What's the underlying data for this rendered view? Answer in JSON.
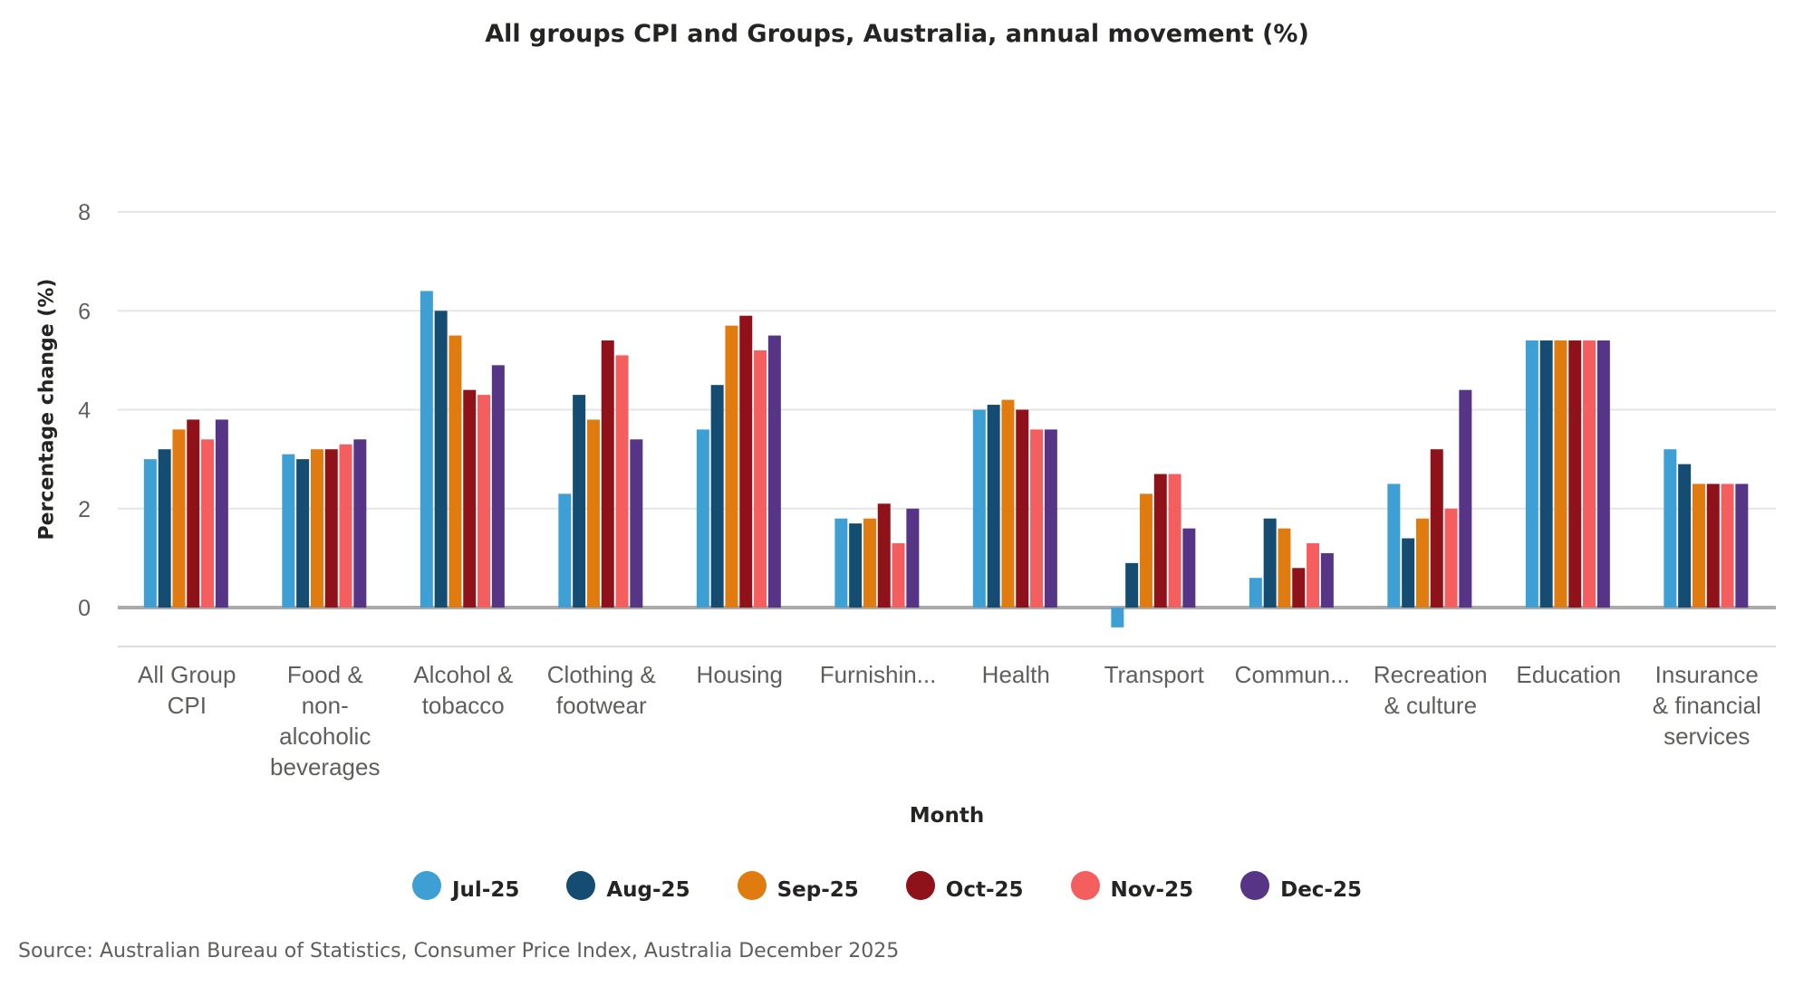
{
  "chart_data": {
    "type": "bar",
    "title": "All groups CPI and Groups, Australia, annual movement (%)",
    "xlabel": "Month",
    "ylabel": "Percentage change (%)",
    "ylim": [
      -0.8,
      8
    ],
    "yticks": [
      "0",
      "2",
      "4",
      "6",
      "8"
    ],
    "grid": true,
    "legend_position": "bottom",
    "categories": [
      "All Group CPI",
      "Food & non-alcoholic beverages",
      "Alcohol & tobacco",
      "Clothing & footwear",
      "Housing",
      "Furnishin...",
      "Health",
      "Transport",
      "Commun...",
      "Recreation & culture",
      "Education",
      "Insurance & financial services"
    ],
    "series": [
      {
        "name": "Jul-25",
        "color": "#3d9fd3",
        "values": [
          3.0,
          3.1,
          6.4,
          2.3,
          3.6,
          1.8,
          4.0,
          -0.4,
          0.6,
          2.5,
          5.4,
          3.2
        ]
      },
      {
        "name": "Aug-25",
        "color": "#154c72",
        "values": [
          3.2,
          3.0,
          6.0,
          4.3,
          4.5,
          1.7,
          4.1,
          0.9,
          1.8,
          1.4,
          5.4,
          2.9
        ]
      },
      {
        "name": "Sep-25",
        "color": "#e07b10",
        "values": [
          3.6,
          3.2,
          5.5,
          3.8,
          5.7,
          1.8,
          4.2,
          2.3,
          1.6,
          1.8,
          5.4,
          2.5
        ]
      },
      {
        "name": "Oct-25",
        "color": "#8f111a",
        "values": [
          3.8,
          3.2,
          4.4,
          5.4,
          5.9,
          2.1,
          4.0,
          2.7,
          0.8,
          3.2,
          5.4,
          2.5
        ]
      },
      {
        "name": "Nov-25",
        "color": "#f55e5e",
        "values": [
          3.4,
          3.3,
          4.3,
          5.1,
          5.2,
          1.3,
          3.6,
          2.7,
          1.3,
          2.0,
          5.4,
          2.5
        ]
      },
      {
        "name": "Dec-25",
        "color": "#563486",
        "values": [
          3.8,
          3.4,
          4.9,
          3.4,
          5.5,
          2.0,
          3.6,
          1.6,
          1.1,
          4.4,
          5.4,
          2.5
        ]
      }
    ],
    "source": "Source: Australian Bureau of Statistics, Consumer Price Index, Australia December 2025"
  }
}
